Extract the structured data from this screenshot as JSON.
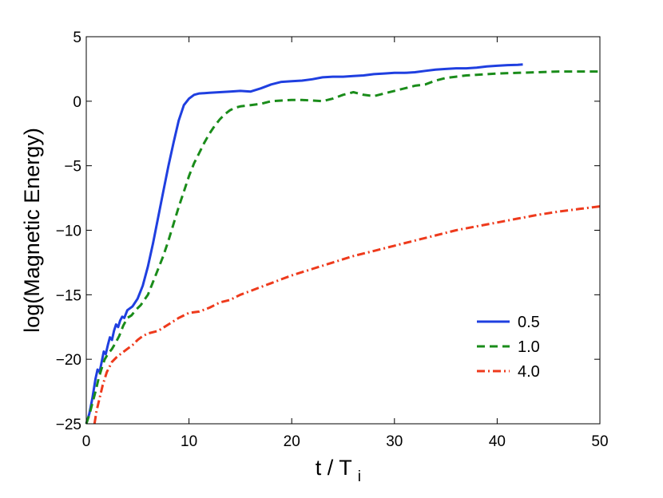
{
  "chart_data": {
    "type": "line",
    "xlabel": "t / T",
    "xlabel_sub": "i",
    "ylabel": "log(Magnetic Energy)",
    "xlim": [
      0,
      50
    ],
    "ylim": [
      -25,
      5
    ],
    "x_ticks": [
      0,
      10,
      20,
      30,
      40,
      50
    ],
    "y_ticks": [
      5,
      0,
      -5,
      -10,
      -15,
      -20,
      -25
    ],
    "x_tick_labels": [
      "0",
      "10",
      "20",
      "30",
      "40",
      "50"
    ],
    "y_tick_labels": [
      "5",
      "0",
      "−5",
      "−10",
      "−15",
      "−20",
      "−25"
    ],
    "grid": false,
    "legend_position": "right",
    "series": [
      {
        "name": "0.5",
        "color": "#1f3fe0",
        "style": "solid",
        "points": [
          [
            0,
            -25
          ],
          [
            0.3,
            -24.2
          ],
          [
            0.6,
            -23
          ],
          [
            0.9,
            -21.5
          ],
          [
            1.1,
            -20.8
          ],
          [
            1.3,
            -21
          ],
          [
            1.5,
            -20.2
          ],
          [
            1.7,
            -19.4
          ],
          [
            1.9,
            -19.6
          ],
          [
            2.1,
            -18.9
          ],
          [
            2.3,
            -18.3
          ],
          [
            2.5,
            -18.5
          ],
          [
            2.7,
            -17.8
          ],
          [
            2.9,
            -17.3
          ],
          [
            3.1,
            -17.5
          ],
          [
            3.3,
            -17
          ],
          [
            3.5,
            -16.7
          ],
          [
            3.7,
            -16.8
          ],
          [
            4,
            -16.2
          ],
          [
            4.5,
            -15.9
          ],
          [
            5,
            -15.3
          ],
          [
            5.5,
            -14.3
          ],
          [
            6,
            -12.8
          ],
          [
            6.5,
            -11
          ],
          [
            7,
            -9
          ],
          [
            7.5,
            -7
          ],
          [
            8,
            -5
          ],
          [
            8.5,
            -3.2
          ],
          [
            9,
            -1.5
          ],
          [
            9.5,
            -0.3
          ],
          [
            10,
            0.2
          ],
          [
            10.5,
            0.5
          ],
          [
            11,
            0.6
          ],
          [
            12,
            0.65
          ],
          [
            13,
            0.7
          ],
          [
            14,
            0.75
          ],
          [
            15,
            0.8
          ],
          [
            16,
            0.75
          ],
          [
            17,
            1
          ],
          [
            18,
            1.3
          ],
          [
            19,
            1.5
          ],
          [
            20,
            1.55
          ],
          [
            21,
            1.6
          ],
          [
            22,
            1.7
          ],
          [
            23,
            1.85
          ],
          [
            24,
            1.9
          ],
          [
            25,
            1.9
          ],
          [
            26,
            1.95
          ],
          [
            27,
            2
          ],
          [
            28,
            2.1
          ],
          [
            29,
            2.15
          ],
          [
            30,
            2.2
          ],
          [
            31,
            2.2
          ],
          [
            32,
            2.25
          ],
          [
            33,
            2.35
          ],
          [
            34,
            2.45
          ],
          [
            35,
            2.5
          ],
          [
            36,
            2.55
          ],
          [
            37,
            2.55
          ],
          [
            38,
            2.6
          ],
          [
            39,
            2.7
          ],
          [
            40,
            2.75
          ],
          [
            41,
            2.8
          ],
          [
            42,
            2.82
          ],
          [
            42.5,
            2.85
          ]
        ]
      },
      {
        "name": "1.0",
        "color": "#1a8c1a",
        "style": "dashed",
        "points": [
          [
            0,
            -25
          ],
          [
            0.3,
            -24.3
          ],
          [
            0.6,
            -23.4
          ],
          [
            0.9,
            -22.5
          ],
          [
            1.2,
            -21.5
          ],
          [
            1.5,
            -20.7
          ],
          [
            1.8,
            -20
          ],
          [
            2.1,
            -19.6
          ],
          [
            2.5,
            -19.2
          ],
          [
            2.8,
            -18.8
          ],
          [
            3.2,
            -18.2
          ],
          [
            3.6,
            -17.4
          ],
          [
            4,
            -16.8
          ],
          [
            4.4,
            -16.6
          ],
          [
            4.8,
            -16.2
          ],
          [
            5.3,
            -15.8
          ],
          [
            6,
            -15
          ],
          [
            6.5,
            -14
          ],
          [
            7,
            -13
          ],
          [
            7.5,
            -12
          ],
          [
            8,
            -10.8
          ],
          [
            8.5,
            -9.5
          ],
          [
            9,
            -8.2
          ],
          [
            9.5,
            -7
          ],
          [
            10,
            -5.8
          ],
          [
            10.5,
            -4.8
          ],
          [
            11,
            -4
          ],
          [
            11.5,
            -3.2
          ],
          [
            12,
            -2.5
          ],
          [
            12.5,
            -1.9
          ],
          [
            13,
            -1.4
          ],
          [
            13.5,
            -1
          ],
          [
            14,
            -0.7
          ],
          [
            14.5,
            -0.5
          ],
          [
            15,
            -0.4
          ],
          [
            16,
            -0.3
          ],
          [
            17,
            -0.2
          ],
          [
            18,
            0
          ],
          [
            19,
            0.05
          ],
          [
            20,
            0.1
          ],
          [
            21,
            0.1
          ],
          [
            22,
            0.05
          ],
          [
            23,
            0
          ],
          [
            24,
            0.2
          ],
          [
            25,
            0.5
          ],
          [
            26,
            0.7
          ],
          [
            27,
            0.5
          ],
          [
            28,
            0.4
          ],
          [
            29,
            0.6
          ],
          [
            30,
            0.8
          ],
          [
            31,
            1
          ],
          [
            32,
            1.2
          ],
          [
            33,
            1.3
          ],
          [
            34,
            1.6
          ],
          [
            35,
            1.8
          ],
          [
            36,
            1.9
          ],
          [
            37,
            2
          ],
          [
            38,
            2.05
          ],
          [
            40,
            2.15
          ],
          [
            42,
            2.2
          ],
          [
            44,
            2.25
          ],
          [
            46,
            2.3
          ],
          [
            48,
            2.3
          ],
          [
            50,
            2.3
          ]
        ]
      },
      {
        "name": "4.0",
        "color": "#ee3a1c",
        "style": "dashdot",
        "points": [
          [
            0.8,
            -25
          ],
          [
            1,
            -24
          ],
          [
            1.3,
            -23
          ],
          [
            1.6,
            -22
          ],
          [
            2,
            -21
          ],
          [
            2.5,
            -20.2
          ],
          [
            3,
            -19.8
          ],
          [
            3.5,
            -19.5
          ],
          [
            4,
            -19.2
          ],
          [
            4.5,
            -18.9
          ],
          [
            5,
            -18.5
          ],
          [
            5.5,
            -18.2
          ],
          [
            6,
            -18
          ],
          [
            7,
            -17.8
          ],
          [
            8,
            -17.3
          ],
          [
            9,
            -16.8
          ],
          [
            10,
            -16.4
          ],
          [
            11,
            -16.3
          ],
          [
            12,
            -16
          ],
          [
            13,
            -15.6
          ],
          [
            14,
            -15.4
          ],
          [
            15,
            -15
          ],
          [
            16,
            -14.7
          ],
          [
            17,
            -14.4
          ],
          [
            18,
            -14.1
          ],
          [
            19,
            -13.8
          ],
          [
            20,
            -13.5
          ],
          [
            22,
            -13
          ],
          [
            24,
            -12.5
          ],
          [
            26,
            -12
          ],
          [
            28,
            -11.6
          ],
          [
            30,
            -11.2
          ],
          [
            32,
            -10.8
          ],
          [
            34,
            -10.4
          ],
          [
            36,
            -10
          ],
          [
            38,
            -9.7
          ],
          [
            40,
            -9.4
          ],
          [
            42,
            -9.1
          ],
          [
            44,
            -8.8
          ],
          [
            46,
            -8.55
          ],
          [
            48,
            -8.35
          ],
          [
            50,
            -8.15
          ]
        ]
      }
    ]
  }
}
